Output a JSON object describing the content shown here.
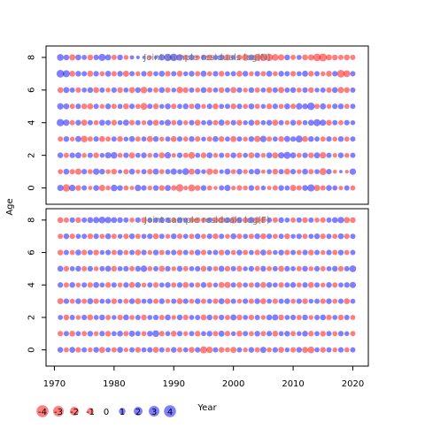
{
  "figure": {
    "ylabel": "Age",
    "xlabel": "Year"
  },
  "colors": {
    "positive": "#0000ff",
    "negative": "#ff0000",
    "panel_title": "#777777"
  },
  "legend": {
    "values": [
      "-4",
      "-3",
      "-2",
      "-1",
      "0",
      "1",
      "2",
      "3",
      "4"
    ]
  },
  "chart_data": [
    {
      "type": "scatter",
      "encoding": "bubble: size = |residual|, color = sign (red negative, blue positive)",
      "title": "Joint sample residuals log(N)",
      "xlabel": "Year",
      "ylabel": "Age",
      "xlim": [
        1968.6,
        2022.6
      ],
      "ylim": [
        -1,
        8.7
      ],
      "x_ticks": [
        1970,
        1980,
        1990,
        2000,
        2010,
        2020
      ],
      "y_ticks": [
        0,
        2,
        4,
        6,
        8
      ],
      "years": [
        1971,
        1972,
        1973,
        1974,
        1975,
        1976,
        1977,
        1978,
        1979,
        1980,
        1981,
        1982,
        1983,
        1984,
        1985,
        1986,
        1987,
        1988,
        1989,
        1990,
        1991,
        1992,
        1993,
        1994,
        1995,
        1996,
        1997,
        1998,
        1999,
        2000,
        2001,
        2002,
        2003,
        2004,
        2005,
        2006,
        2007,
        2008,
        2009,
        2010,
        2011,
        2012,
        2013,
        2014,
        2015,
        2016,
        2017,
        2018,
        2019,
        2020
      ],
      "ages": [
        0,
        1,
        2,
        3,
        4,
        5,
        6,
        7,
        8
      ],
      "residuals_note": "approximate residual per age row; columns follow 'years'",
      "residuals": [
        [
          1.5,
          -2.2,
          1.6,
          -1.2,
          1.0,
          -0.6,
          1.3,
          -1.5,
          -0.8,
          1.7,
          1.2,
          -0.9,
          -0.6,
          1.6,
          1.1,
          -0.8,
          1.2,
          -1.2,
          1.4,
          -1.1,
          -2.3,
          -0.7,
          -1.9,
          -1.2,
          1.2,
          -0.9,
          -0.5,
          1.0,
          1.5,
          -0.7,
          -1.1,
          -0.8,
          1.2,
          -0.9,
          0.8,
          -0.6,
          -1.0,
          1.2,
          0.9,
          -1.5,
          -1.0,
          1.3,
          2.1,
          -1.5,
          -1.0,
          1.3,
          0.9,
          -0.7,
          1.0,
          -0.9
        ],
        [
          -0.9,
          1.3,
          -1.0,
          -1.5,
          1.1,
          -0.9,
          1.6,
          1.2,
          -0.8,
          -1.2,
          0.6,
          -1.0,
          1.3,
          -0.7,
          1.0,
          -1.1,
          1.4,
          -0.9,
          1.0,
          1.5,
          0.9,
          1.8,
          -1.4,
          1.2,
          0.8,
          -1.6,
          -1.0,
          0.7,
          1.4,
          -0.9,
          1.2,
          -0.8,
          1.0,
          1.4,
          -0.6,
          0.9,
          -1.2,
          1.0,
          -1.4,
          1.1,
          -0.8,
          1.3,
          -1.0,
          0.9,
          -1.9,
          1.1,
          -0.5,
          0.3,
          -0.4,
          1.6
        ],
        [
          1.2,
          -1.0,
          1.1,
          1.4,
          -0.8,
          1.0,
          -1.2,
          0.8,
          1.5,
          1.7,
          -0.9,
          1.1,
          -1.4,
          0.9,
          1.2,
          -0.8,
          1.0,
          -1.3,
          1.6,
          -0.7,
          1.1,
          -1.0,
          -1.8,
          0.9,
          -1.2,
          1.3,
          -0.8,
          1.0,
          -0.9,
          1.2,
          -1.1,
          0.9,
          -1.3,
          1.1,
          -0.8,
          1.3,
          -1.4,
          1.5,
          2.0,
          1.3,
          -0.9,
          1.1,
          -1.2,
          1.4,
          -1.6,
          1.0,
          -0.7,
          1.2,
          -0.8,
          1.0
        ],
        [
          -1.0,
          1.2,
          -0.8,
          1.4,
          -1.7,
          -1.0,
          1.1,
          -1.3,
          -0.9,
          1.0,
          -1.2,
          0.8,
          1.3,
          -1.0,
          0.9,
          -1.4,
          1.2,
          -0.8,
          1.0,
          -1.3,
          1.1,
          -0.9,
          1.2,
          -1.1,
          0.8,
          -1.0,
          1.3,
          -1.2,
          0.9,
          -1.4,
          1.0,
          -0.8,
          1.2,
          -1.5,
          1.6,
          -1.0,
          0.9,
          -1.2,
          1.4,
          1.1,
          1.9,
          -1.3,
          1.2,
          0.9,
          -1.0,
          1.1,
          -0.8,
          1.2,
          -0.9,
          1.0
        ],
        [
          2.2,
          1.6,
          -1.0,
          1.2,
          -1.4,
          1.0,
          -0.9,
          1.3,
          1.1,
          -1.2,
          0.9,
          1.4,
          -1.1,
          1.0,
          -0.8,
          1.2,
          -1.3,
          0.9,
          1.5,
          -1.0,
          1.2,
          -0.8,
          1.1,
          -1.3,
          0.9,
          1.2,
          -1.0,
          1.4,
          -0.9,
          1.1,
          -1.2,
          0.8,
          1.3,
          -1.1,
          0.9,
          1.2,
          -1.4,
          1.0,
          -0.8,
          1.2,
          -1.1,
          0.9,
          1.3,
          2.0,
          1.5,
          -1.2,
          1.0,
          -0.9,
          1.1,
          0.8
        ],
        [
          1.6,
          1.3,
          -1.0,
          1.1,
          -1.2,
          -1.4,
          1.0,
          -0.8,
          1.2,
          -1.0,
          0.9,
          -1.3,
          1.1,
          -0.9,
          -1.9,
          1.0,
          -1.2,
          0.8,
          1.3,
          -1.1,
          0.9,
          1.2,
          -1.0,
          1.4,
          -0.8,
          1.1,
          -1.3,
          0.9,
          1.0,
          -1.2,
          1.1,
          -0.9,
          1.3,
          -1.0,
          0.8,
          -1.2,
          1.1,
          -0.9,
          1.3,
          -1.1,
          1.6,
          1.2,
          2.3,
          -1.0,
          1.4,
          -0.8,
          1.1,
          1.2,
          -0.9,
          1.0
        ],
        [
          -1.2,
          1.4,
          1.0,
          -1.1,
          0.9,
          1.2,
          -1.3,
          1.0,
          -0.8,
          1.1,
          -1.2,
          0.9,
          -1.4,
          1.2,
          -1.7,
          0.9,
          -1.0,
          1.3,
          -1.1,
          0.8,
          -1.6,
          -1.2,
          1.0,
          -0.9,
          1.3,
          -1.1,
          0.9,
          -1.2,
          1.0,
          -1.4,
          1.1,
          -0.8,
          1.2,
          -1.0,
          0.9,
          -1.3,
          1.1,
          -1.4,
          1.0,
          1.2,
          -0.9,
          1.1,
          -1.2,
          0.8,
          1.0,
          -1.1,
          1.3,
          -1.5,
          -1.2,
          1.0
        ],
        [
          2.4,
          2.0,
          -1.3,
          1.2,
          1.0,
          -1.4,
          1.1,
          -0.9,
          1.3,
          -1.0,
          1.2,
          -1.5,
          1.0,
          -0.8,
          1.1,
          -1.2,
          0.9,
          1.3,
          -1.1,
          1.0,
          -1.3,
          0.8,
          1.2,
          -1.0,
          1.4,
          -0.9,
          1.1,
          -1.2,
          0.9,
          1.0,
          -1.3,
          1.2,
          -0.8,
          1.1,
          -1.0,
          1.3,
          -0.9,
          1.2,
          1.0,
          -1.1,
          0.9,
          1.4,
          -1.2,
          1.0,
          -0.8,
          -1.3,
          1.1,
          -2.4,
          -1.8,
          1.0
        ],
        [
          1.8,
          1.2,
          -1.5,
          1.3,
          0.9,
          -1.2,
          1.1,
          2.0,
          1.4,
          -1.0,
          1.2,
          -0.8,
          0.6,
          0.4,
          0.3,
          -0.5,
          0.4,
          1.5,
          2.2,
          2.3,
          1.7,
          -1.0,
          1.2,
          -0.8,
          1.1,
          -1.3,
          0.9,
          1.2,
          -1.5,
          0.8,
          -1.1,
          -1.8,
          1.3,
          -2.0,
          -2.3,
          -2.2,
          -1.8,
          -1.5,
          1.2,
          -1.0,
          0.9,
          -1.3,
          -1.4,
          -2.4,
          -2.6,
          -1.4,
          -1.2,
          -1.0,
          -1.3,
          -1.0
        ]
      ]
    },
    {
      "type": "scatter",
      "encoding": "bubble: size = |residual|, color = sign (red negative, blue positive)",
      "title": "Joint sample residuals log(F)",
      "xlabel": "Year",
      "ylabel": "Age",
      "xlim": [
        1968.6,
        2022.6
      ],
      "ylim": [
        -1,
        8.7
      ],
      "x_ticks": [
        1970,
        1980,
        1990,
        2000,
        2010,
        2020
      ],
      "x_tick_labels": [
        "1970",
        "1980",
        "1990",
        "2000",
        "2010",
        "2020"
      ],
      "y_ticks": [
        0,
        2,
        4,
        6,
        8
      ],
      "years": [
        1971,
        1972,
        1973,
        1974,
        1975,
        1976,
        1977,
        1978,
        1979,
        1980,
        1981,
        1982,
        1983,
        1984,
        1985,
        1986,
        1987,
        1988,
        1989,
        1990,
        1991,
        1992,
        1993,
        1994,
        1995,
        1996,
        1997,
        1998,
        1999,
        2000,
        2001,
        2002,
        2003,
        2004,
        2005,
        2006,
        2007,
        2008,
        2009,
        2010,
        2011,
        2012,
        2013,
        2014,
        2015,
        2016,
        2017,
        2018,
        2019,
        2020
      ],
      "ages": [
        0,
        1,
        2,
        3,
        4,
        5,
        6,
        7,
        8
      ],
      "residuals_note": "approximate residual per age row; columns follow 'years'",
      "residuals": [
        [
          1.2,
          -0.9,
          1.3,
          -1.1,
          1.0,
          -0.8,
          1.2,
          -1.4,
          0.9,
          -1.0,
          1.3,
          -0.7,
          1.0,
          -1.2,
          0.9,
          1.1,
          -1.3,
          1.0,
          -0.8,
          1.2,
          -1.0,
          0.9,
          -1.3,
          1.1,
          -2.0,
          -1.6,
          1.0,
          -1.2,
          -0.9,
          -1.4,
          1.0,
          -0.8,
          1.2,
          -1.0,
          1.5,
          -0.9,
          1.1,
          -1.3,
          0.8,
          -1.1,
          1.2,
          -1.4,
          -1.8,
          0.9,
          -1.2,
          1.0,
          -0.8,
          1.1,
          -0.9,
          1.0
        ],
        [
          -1.1,
          1.0,
          -1.3,
          0.9,
          -1.0,
          1.2,
          -0.8,
          1.1,
          -1.2,
          0.9,
          1.3,
          -1.0,
          1.4,
          1.0,
          -0.9,
          1.2,
          1.8,
          -1.1,
          0.9,
          -1.3,
          1.1,
          -0.8,
          1.0,
          -1.2,
          0.9,
          1.2,
          -1.0,
          1.4,
          -1.1,
          0.8,
          -1.3,
          1.0,
          -0.9,
          1.2,
          -1.0,
          1.1,
          -1.3,
          0.9,
          1.2,
          -1.0,
          0.8,
          1.3,
          -1.1,
          0.9,
          -1.2,
          1.0,
          -0.9,
          1.1,
          0.8,
          -1.0
        ],
        [
          0.9,
          -1.2,
          1.0,
          -0.8,
          1.1,
          -1.3,
          0.9,
          1.2,
          -1.0,
          0.8,
          -1.1,
          1.3,
          -0.9,
          1.0,
          -1.2,
          0.9,
          1.1,
          -1.0,
          1.3,
          -0.8,
          1.2,
          -1.1,
          0.9,
          1.0,
          -1.3,
          1.2,
          -0.9,
          1.1,
          -1.0,
          1.4,
          -1.2,
          0.9,
          -1.1,
          1.0,
          -0.8,
          1.3,
          1.4,
          -1.2,
          0.9,
          1.1,
          -1.0,
          1.2,
          -0.8,
          1.0,
          1.3,
          -1.1,
          0.9,
          -1.2,
          1.0,
          -0.9
        ],
        [
          -1.4,
          1.1,
          -0.9,
          1.2,
          -1.0,
          1.3,
          -1.1,
          0.9,
          1.0,
          -1.2,
          0.8,
          -1.0,
          1.2,
          -1.3,
          0.9,
          1.1,
          -1.0,
          1.2,
          -0.8,
          1.0,
          -1.3,
          1.1,
          -0.9,
          1.2,
          -1.0,
          0.9,
          -1.1,
          1.3,
          -1.2,
          1.0,
          -0.8,
          1.1,
          -1.0,
          1.2,
          -1.3,
          0.9,
          -1.1,
          1.0,
          1.2,
          -0.9,
          1.1,
          -1.2,
          0.8,
          1.0,
          -1.1,
          1.2,
          -0.9,
          1.0,
          -1.3,
          0.9
        ],
        [
          1.1,
          -1.0,
          1.2,
          -0.8,
          1.0,
          -1.1,
          1.3,
          0.9,
          -1.2,
          1.0,
          -0.9,
          1.1,
          -1.3,
          1.2,
          -0.8,
          1.0,
          -1.1,
          0.9,
          1.2,
          -1.0,
          1.1,
          -1.3,
          0.9,
          -1.0,
          1.2,
          -1.1,
          0.8,
          -1.3,
          -1.5,
          1.0,
          -1.2,
          0.9,
          -1.0,
          1.1,
          -1.3,
          1.2,
          0.9,
          -1.1,
          1.0,
          1.2,
          -0.9,
          1.1,
          -1.3,
          1.0,
          -0.8,
          1.2,
          -1.0,
          0.9,
          1.1,
          1.5
        ],
        [
          1.3,
          -1.1,
          0.9,
          1.2,
          -1.0,
          1.1,
          -0.8,
          1.0,
          1.3,
          -1.2,
          0.9,
          1.1,
          -1.0,
          1.2,
          1.6,
          -0.9,
          1.0,
          -1.3,
          1.1,
          -0.8,
          1.2,
          -1.0,
          0.9,
          1.1,
          -1.2,
          1.0,
          -0.9,
          1.3,
          -1.1,
          1.0,
          -1.2,
          0.8,
          1.1,
          -1.0,
          1.2,
          -0.9,
          1.0,
          -1.3,
          1.1,
          0.9,
          -1.0,
          1.2,
          -0.8,
          1.1,
          -1.0,
          0.9,
          1.2,
          -1.1,
          1.0,
          1.8
        ],
        [
          -1.2,
          1.0,
          -0.9,
          1.3,
          -1.1,
          1.0,
          -1.2,
          0.8,
          1.1,
          -1.0,
          1.2,
          -0.9,
          1.0,
          -1.3,
          1.1,
          -0.8,
          1.2,
          -1.0,
          0.9,
          1.1,
          -1.2,
          1.0,
          -0.9,
          1.3,
          -1.1,
          0.8,
          1.0,
          -1.2,
          1.1,
          -0.9,
          1.2,
          -1.0,
          0.9,
          -1.1,
          1.3,
          -1.0,
          0.8,
          1.2,
          -1.1,
          1.0,
          -0.9,
          1.1,
          -1.2,
          1.0,
          -0.8,
          1.1,
          -1.0,
          1.2,
          -0.9,
          1.0
        ],
        [
          -1.0,
          1.2,
          -1.1,
          0.9,
          1.0,
          -1.2,
          1.1,
          -0.9,
          1.3,
          -1.0,
          0.8,
          -1.1,
          1.2,
          -1.0,
          0.9,
          1.1,
          -1.3,
          1.0,
          -0.8,
          1.2,
          -1.1,
          0.9,
          -1.0,
          1.2,
          -0.9,
          1.1,
          -1.2,
          1.0,
          -0.8,
          1.3,
          -1.1,
          0.9,
          -1.0,
          1.2,
          -1.3,
          1.1,
          -0.9,
          1.0,
          -1.2,
          0.8,
          1.1,
          -1.0,
          0.9,
          1.2,
          -1.1,
          1.0,
          -0.9,
          1.3,
          -1.1,
          1.0
        ],
        [
          -1.3,
          -1.0,
          1.1,
          -1.2,
          1.0,
          1.3,
          1.5,
          1.8,
          1.6,
          1.3,
          1.2,
          1.0,
          -0.9,
          1.1,
          -1.2,
          0.9,
          1.0,
          1.2,
          1.1,
          -1.0,
          1.3,
          0.9,
          -1.1,
          -1.2,
          -1.0,
          1.1,
          -1.3,
          -1.5,
          1.2,
          -1.7,
          1.3,
          -1.2,
          1.4,
          -1.5,
          -1.3,
          1.0,
          -1.1,
          1.2,
          0.9,
          -1.0,
          1.1,
          -1.2,
          1.0,
          -0.9,
          -1.1,
          1.0,
          1.3,
          1.6,
          -1.4,
          -1.2
        ]
      ]
    }
  ]
}
